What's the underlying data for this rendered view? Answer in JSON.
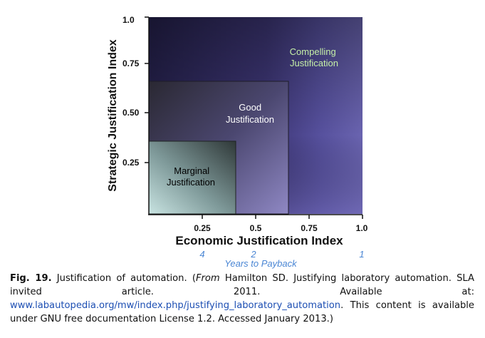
{
  "diagram": {
    "y_axis_title": "Strategic Justification Index",
    "x_axis_title": "Economic Justification Index",
    "y_ticks": [
      "0.25",
      "0.50",
      "0.75",
      "1.0"
    ],
    "x_ticks": [
      "0.25",
      "0.5",
      "0.75",
      "1.0"
    ],
    "payback_ticks": [
      "4",
      "2",
      "1"
    ],
    "payback_title": "Years to Payback",
    "zones": {
      "compelling": [
        "Compelling",
        "Justification"
      ],
      "good": [
        "Good",
        "Justification"
      ],
      "marginal": [
        "Marginal",
        "Justification"
      ]
    },
    "colors": {
      "compelling_text": "#c6f0a8",
      "payback_text": "#4a86d4",
      "link": "#1d4fb3"
    }
  },
  "caption": {
    "label": "Fig. 19.",
    "text_1": " Justification of automation. (",
    "from": "From",
    "text_2": " Hamilton SD. Justifying laboratory automation. SLA invited article. 2011. Available at: ",
    "link": "www.labautopedia.org/mw/index.php/justifying_laboratory_automation",
    "text_3": ". This content is available under GNU free documentation License 1.2. Accessed January 2013.)"
  }
}
